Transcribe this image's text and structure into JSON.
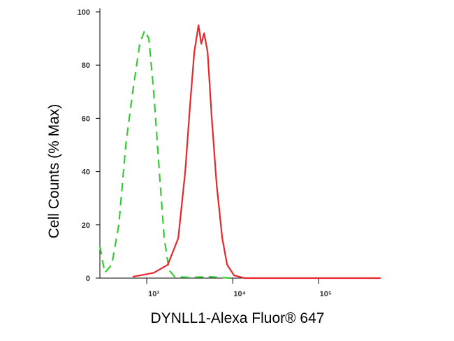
{
  "chart_data": {
    "type": "line",
    "xlabel": "DYNLL1-Alexa Fluor® 647",
    "ylabel": "Cell Counts (% Max)",
    "xscale": "log",
    "xlim": [
      285,
      525000
    ],
    "xticks": [
      {
        "value": 1000,
        "label": "10³"
      },
      {
        "value": 10000,
        "label": "10⁴"
      },
      {
        "value": 100000,
        "label": "10⁵"
      }
    ],
    "ylim": [
      0,
      100
    ],
    "yticks": [
      0,
      20,
      40,
      60,
      80,
      100
    ],
    "grid": false,
    "series": [
      {
        "color": "#33cc33",
        "dash": true,
        "x": [
          285,
          325,
          392,
          473,
          570,
          687,
          829,
          946,
          1058,
          1206,
          1401,
          1596,
          1820,
          2113,
          3076,
          5395,
          9460
        ],
        "values": [
          12,
          2,
          5,
          20,
          50,
          70,
          88,
          93,
          90,
          70,
          40,
          15,
          3,
          0.5,
          0.3,
          0.5,
          0
        ]
      },
      {
        "color": "#e8262b",
        "dash": false,
        "x": [
          687,
          1206,
          1754,
          2322,
          2800,
          3190,
          3570,
          4000,
          4310,
          4640,
          5100,
          5700,
          6500,
          7550,
          8610,
          10380,
          13740,
          89300,
          525000
        ],
        "values": [
          0.5,
          2,
          5,
          15,
          40,
          65,
          85,
          95,
          88,
          92,
          85,
          60,
          35,
          15,
          5,
          1,
          0,
          0,
          0
        ]
      }
    ]
  }
}
